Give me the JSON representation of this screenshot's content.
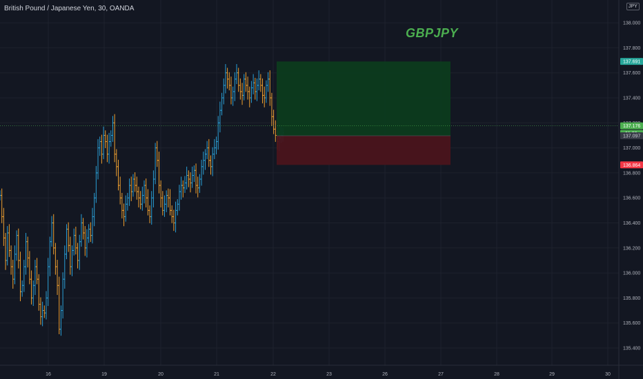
{
  "title": "British Pound / Japanese Yen, 30, OANDA",
  "watermark": "GBPJPY",
  "currency_badge": "JPY",
  "colors": {
    "background": "#131722",
    "up": "#2a9fd6",
    "down": "#f0a030",
    "target": "#0c3b1e",
    "stop": "#4a141c",
    "target_tag": "#26a69a",
    "stop_tag": "#f23645",
    "current_tag": "#4caf50",
    "close_tag": "#363a45"
  },
  "chart_data": {
    "type": "bar",
    "ylim": [
      135.25,
      138.15
    ],
    "y_ticks": [
      "135.400",
      "135.600",
      "135.800",
      "136.000",
      "136.200",
      "136.400",
      "136.600",
      "136.800",
      "137.000",
      "137.200",
      "137.400",
      "137.600",
      "137.800",
      "138.000"
    ],
    "x_ticks": [
      "16",
      "19",
      "20",
      "21",
      "22",
      "23",
      "26",
      "27",
      "28",
      "29",
      "30"
    ],
    "series": [
      {
        "values": [
          136.62,
          136.45,
          136.28,
          136.1,
          136.32,
          136.18,
          136.05,
          135.95,
          136.15,
          136.3,
          136.1,
          135.85,
          135.9,
          136.05,
          136.25,
          136.12,
          135.95,
          135.8,
          135.9,
          136.05,
          135.95,
          135.75,
          135.65,
          135.7,
          135.68,
          135.8,
          136.05,
          136.25,
          136.4,
          136.2,
          136.05,
          135.9,
          135.55,
          135.7,
          135.95,
          136.15,
          136.35,
          136.22,
          136.05,
          136.18,
          136.3,
          136.2,
          136.1,
          136.25,
          136.4,
          136.32,
          136.2,
          136.28,
          136.35,
          136.3,
          136.45,
          136.6,
          136.8,
          137.0,
          137.05,
          136.95,
          137.1,
          137.05,
          136.95,
          137.05,
          137.1,
          137.2,
          136.95,
          136.85,
          136.7,
          136.6,
          136.5,
          136.45,
          136.55,
          136.6,
          136.7,
          136.65,
          136.75,
          136.7,
          136.65,
          136.6,
          136.55,
          136.62,
          136.7,
          136.6,
          136.5,
          136.45,
          136.6,
          136.75,
          137.0,
          136.9,
          136.7,
          136.6,
          136.5,
          136.55,
          136.62,
          136.6,
          136.5,
          136.45,
          136.4,
          136.5,
          136.55,
          136.65,
          136.7,
          136.68,
          136.72,
          136.78,
          136.75,
          136.72,
          136.78,
          136.82,
          136.7,
          136.68,
          136.75,
          136.85,
          136.9,
          136.95,
          137.0,
          136.9,
          136.85,
          136.95,
          137.0,
          137.05,
          137.2,
          137.3,
          137.4,
          137.5,
          137.6,
          137.55,
          137.5,
          137.4,
          137.45,
          137.55,
          137.6,
          137.5,
          137.45,
          137.42,
          137.55,
          137.5,
          137.45,
          137.4,
          137.48,
          137.52,
          137.45,
          137.5,
          137.55,
          137.5,
          137.42,
          137.4,
          137.5,
          137.55,
          137.4,
          137.25,
          137.15,
          137.1,
          137.05,
          137.08,
          137.1,
          137.12
        ]
      }
    ],
    "position": {
      "entry": 137.097,
      "target": 137.691,
      "stop": 136.864,
      "current": 137.176,
      "countdown": "01:38"
    },
    "price_tags": {
      "target": "137.691",
      "current": "137.176",
      "countdown": "01:38",
      "entry": "137.097",
      "stop": "136.864"
    }
  }
}
